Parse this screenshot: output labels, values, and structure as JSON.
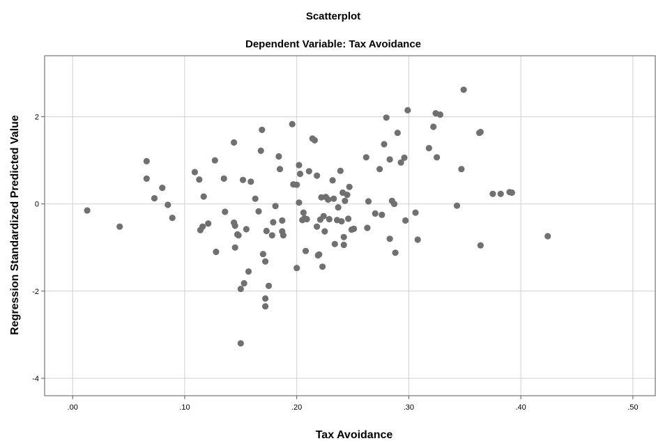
{
  "chart_data": {
    "type": "scatter",
    "title": "Scatterplot",
    "subtitle": "Dependent Variable: Tax Avoidance",
    "xlabel": "Tax Avoidance",
    "ylabel": "Regression Standardized Predicted Value",
    "xlim": [
      -0.025,
      0.52
    ],
    "ylim": [
      -4.4,
      3.4
    ],
    "xticks": [
      0.0,
      0.1,
      0.2,
      0.3,
      0.4,
      0.5
    ],
    "xtick_labels": [
      ".00",
      ".10",
      ".20",
      ".30",
      ".40",
      ".50"
    ],
    "yticks": [
      -4,
      -2,
      0,
      2
    ],
    "ytick_labels": [
      "-4",
      "-2",
      "0",
      "2"
    ],
    "grid": true,
    "colors": {
      "points": "#707070",
      "grid": "#cfcfcf",
      "axis": "#5a5a5a"
    },
    "points": [
      {
        "x": 0.013,
        "y": -0.15
      },
      {
        "x": 0.042,
        "y": -0.52
      },
      {
        "x": 0.066,
        "y": 0.98
      },
      {
        "x": 0.066,
        "y": 0.58
      },
      {
        "x": 0.073,
        "y": 0.13
      },
      {
        "x": 0.08,
        "y": 0.37
      },
      {
        "x": 0.085,
        "y": -0.02
      },
      {
        "x": 0.089,
        "y": -0.32
      },
      {
        "x": 0.109,
        "y": 0.73
      },
      {
        "x": 0.113,
        "y": 0.56
      },
      {
        "x": 0.114,
        "y": -0.6
      },
      {
        "x": 0.116,
        "y": -0.52
      },
      {
        "x": 0.117,
        "y": 0.17
      },
      {
        "x": 0.121,
        "y": -0.45
      },
      {
        "x": 0.127,
        "y": 1.0
      },
      {
        "x": 0.128,
        "y": -1.1
      },
      {
        "x": 0.135,
        "y": 0.58
      },
      {
        "x": 0.136,
        "y": -0.18
      },
      {
        "x": 0.144,
        "y": 1.41
      },
      {
        "x": 0.144,
        "y": -0.43
      },
      {
        "x": 0.145,
        "y": -0.5
      },
      {
        "x": 0.145,
        "y": -1.0
      },
      {
        "x": 0.147,
        "y": -0.7
      },
      {
        "x": 0.148,
        "y": -0.72
      },
      {
        "x": 0.15,
        "y": -3.2
      },
      {
        "x": 0.15,
        "y": -1.95
      },
      {
        "x": 0.152,
        "y": 0.55
      },
      {
        "x": 0.153,
        "y": -1.82
      },
      {
        "x": 0.155,
        "y": -0.58
      },
      {
        "x": 0.157,
        "y": -1.55
      },
      {
        "x": 0.159,
        "y": 0.51
      },
      {
        "x": 0.163,
        "y": 0.12
      },
      {
        "x": 0.166,
        "y": -0.17
      },
      {
        "x": 0.168,
        "y": 1.22
      },
      {
        "x": 0.169,
        "y": 1.7
      },
      {
        "x": 0.17,
        "y": -1.15
      },
      {
        "x": 0.172,
        "y": -2.17
      },
      {
        "x": 0.172,
        "y": -2.35
      },
      {
        "x": 0.172,
        "y": -1.32
      },
      {
        "x": 0.173,
        "y": -0.62
      },
      {
        "x": 0.175,
        "y": -1.88
      },
      {
        "x": 0.178,
        "y": -0.72
      },
      {
        "x": 0.179,
        "y": -0.42
      },
      {
        "x": 0.181,
        "y": -0.05
      },
      {
        "x": 0.184,
        "y": 1.09
      },
      {
        "x": 0.185,
        "y": 0.8
      },
      {
        "x": 0.187,
        "y": -0.38
      },
      {
        "x": 0.187,
        "y": -0.63
      },
      {
        "x": 0.188,
        "y": -0.72
      },
      {
        "x": 0.196,
        "y": 1.83
      },
      {
        "x": 0.197,
        "y": 0.45
      },
      {
        "x": 0.2,
        "y": 0.44
      },
      {
        "x": 0.2,
        "y": -1.47
      },
      {
        "x": 0.202,
        "y": 0.89
      },
      {
        "x": 0.202,
        "y": 0.03
      },
      {
        "x": 0.203,
        "y": 0.69
      },
      {
        "x": 0.205,
        "y": -0.37
      },
      {
        "x": 0.206,
        "y": -0.2
      },
      {
        "x": 0.207,
        "y": -0.33
      },
      {
        "x": 0.208,
        "y": -1.08
      },
      {
        "x": 0.209,
        "y": -0.35
      },
      {
        "x": 0.211,
        "y": 0.75
      },
      {
        "x": 0.214,
        "y": 1.5
      },
      {
        "x": 0.216,
        "y": 1.46
      },
      {
        "x": 0.218,
        "y": 0.65
      },
      {
        "x": 0.218,
        "y": -0.52
      },
      {
        "x": 0.219,
        "y": -1.18
      },
      {
        "x": 0.22,
        "y": -1.16
      },
      {
        "x": 0.221,
        "y": -0.36
      },
      {
        "x": 0.222,
        "y": 0.15
      },
      {
        "x": 0.223,
        "y": -1.44
      },
      {
        "x": 0.224,
        "y": -0.28
      },
      {
        "x": 0.225,
        "y": -0.63
      },
      {
        "x": 0.226,
        "y": 0.16
      },
      {
        "x": 0.228,
        "y": 0.1
      },
      {
        "x": 0.229,
        "y": -0.35
      },
      {
        "x": 0.232,
        "y": 0.54
      },
      {
        "x": 0.233,
        "y": 0.12
      },
      {
        "x": 0.234,
        "y": -0.92
      },
      {
        "x": 0.236,
        "y": -0.37
      },
      {
        "x": 0.237,
        "y": -0.08
      },
      {
        "x": 0.239,
        "y": 0.76
      },
      {
        "x": 0.24,
        "y": -0.4
      },
      {
        "x": 0.241,
        "y": 0.26
      },
      {
        "x": 0.242,
        "y": -0.76
      },
      {
        "x": 0.242,
        "y": -0.94
      },
      {
        "x": 0.243,
        "y": 0.07
      },
      {
        "x": 0.245,
        "y": 0.21
      },
      {
        "x": 0.246,
        "y": -0.34
      },
      {
        "x": 0.247,
        "y": 0.39
      },
      {
        "x": 0.249,
        "y": -0.59
      },
      {
        "x": 0.251,
        "y": -0.57
      },
      {
        "x": 0.262,
        "y": 1.07
      },
      {
        "x": 0.263,
        "y": -0.55
      },
      {
        "x": 0.264,
        "y": 0.06
      },
      {
        "x": 0.27,
        "y": -0.22
      },
      {
        "x": 0.274,
        "y": 0.8
      },
      {
        "x": 0.276,
        "y": -0.25
      },
      {
        "x": 0.278,
        "y": 1.37
      },
      {
        "x": 0.28,
        "y": 1.98
      },
      {
        "x": 0.283,
        "y": 1.02
      },
      {
        "x": 0.283,
        "y": -0.8
      },
      {
        "x": 0.285,
        "y": 0.07
      },
      {
        "x": 0.287,
        "y": 0.0
      },
      {
        "x": 0.288,
        "y": -1.12
      },
      {
        "x": 0.29,
        "y": 1.63
      },
      {
        "x": 0.293,
        "y": 0.95
      },
      {
        "x": 0.296,
        "y": 1.06
      },
      {
        "x": 0.297,
        "y": -0.38
      },
      {
        "x": 0.299,
        "y": 2.15
      },
      {
        "x": 0.306,
        "y": -0.2
      },
      {
        "x": 0.308,
        "y": -0.82
      },
      {
        "x": 0.318,
        "y": 1.28
      },
      {
        "x": 0.322,
        "y": 1.77
      },
      {
        "x": 0.324,
        "y": 2.08
      },
      {
        "x": 0.325,
        "y": 1.07
      },
      {
        "x": 0.328,
        "y": 2.05
      },
      {
        "x": 0.343,
        "y": -0.04
      },
      {
        "x": 0.347,
        "y": 0.8
      },
      {
        "x": 0.349,
        "y": 2.62
      },
      {
        "x": 0.363,
        "y": 1.63
      },
      {
        "x": 0.364,
        "y": 1.65
      },
      {
        "x": 0.364,
        "y": -0.95
      },
      {
        "x": 0.375,
        "y": 0.23
      },
      {
        "x": 0.382,
        "y": 0.23
      },
      {
        "x": 0.39,
        "y": 0.27
      },
      {
        "x": 0.392,
        "y": 0.26
      },
      {
        "x": 0.424,
        "y": -0.74
      }
    ]
  }
}
